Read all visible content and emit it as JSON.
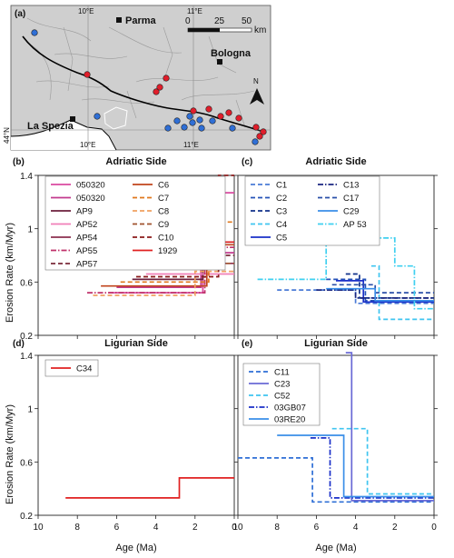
{
  "map": {
    "panel_label": "(a)",
    "labels": {
      "parma": "Parma",
      "bologna": "Bologna",
      "la_spezia": "La Spezia",
      "lon10_top": "10°E",
      "lon11_top": "11°E",
      "lon10_bottom": "10°E",
      "lon11_bottom": "11°E",
      "lat44": "44°N",
      "north": "N"
    },
    "scale": {
      "ticks": [
        "0",
        "25",
        "50"
      ],
      "unit": "km"
    },
    "colors": {
      "land": "#cfcfcf",
      "sea": "#ffffff",
      "red_site": "#e01e2b",
      "blue_site": "#2f6fd6"
    }
  },
  "shared": {
    "ylabel": "Erosion Rate (km/Myr)",
    "xlabel": "Age (Ma)",
    "y_ticks": [
      "1.4",
      "1",
      "0.6",
      "0.2"
    ],
    "x_ticks": [
      "10",
      "8",
      "6",
      "4",
      "2",
      "0"
    ]
  },
  "chart_data": [
    {
      "panel": "(b)",
      "type": "line",
      "title": "Adriatic Side",
      "xlim": [
        10,
        0
      ],
      "ylim": [
        0.2,
        1.4
      ],
      "xlabel": "",
      "ylabel": "Erosion Rate (km/Myr)",
      "legend_placement": "top",
      "series": [
        {
          "name": "050320",
          "color": "#d94aa0",
          "dash": "solid",
          "points": [
            [
              6.4,
              0.52
            ],
            [
              1.6,
              0.52
            ],
            [
              1.6,
              1.27
            ],
            [
              0,
              1.27
            ]
          ]
        },
        {
          "name": "050320",
          "color": "#c23a8e",
          "dash": "solid",
          "points": [
            [
              6.0,
              0.56
            ],
            [
              1.7,
              0.56
            ],
            [
              1.7,
              0.82
            ],
            [
              0,
              0.82
            ]
          ]
        },
        {
          "name": "AP9",
          "color": "#6b1f3c",
          "dash": "solid",
          "points": [
            [
              5.2,
              0.62
            ],
            [
              1.6,
              0.62
            ],
            [
              1.6,
              0.9
            ],
            [
              0,
              0.9
            ]
          ]
        },
        {
          "name": "AP52",
          "color": "#f07fb8",
          "dash": "solid",
          "points": [
            [
              4.5,
              0.66
            ],
            [
              2.0,
              0.66
            ],
            [
              2.0,
              0.66
            ],
            [
              0,
              0.66
            ]
          ]
        },
        {
          "name": "AP54",
          "color": "#8b2f4f",
          "dash": "solid",
          "points": [
            [
              5.2,
              0.7
            ],
            [
              1.8,
              0.7
            ],
            [
              1.8,
              0.74
            ],
            [
              0,
              0.74
            ]
          ]
        },
        {
          "name": "AP55",
          "color": "#c0306a",
          "dash": "dashdot",
          "points": [
            [
              7.5,
              0.52
            ],
            [
              1.5,
              0.52
            ],
            [
              1.5,
              0.86
            ],
            [
              0,
              0.86
            ]
          ]
        },
        {
          "name": "AP57",
          "color": "#7a2a3a",
          "dash": "dash",
          "points": [
            [
              4.0,
              0.78
            ],
            [
              1.2,
              0.78
            ],
            [
              1.2,
              0.8
            ],
            [
              0,
              0.8
            ]
          ]
        },
        {
          "name": "C6",
          "color": "#c0441c",
          "dash": "solid",
          "points": [
            [
              6.8,
              0.57
            ],
            [
              1.4,
              0.57
            ],
            [
              1.4,
              0.88
            ],
            [
              0,
              0.88
            ]
          ]
        },
        {
          "name": "C7",
          "color": "#e0781e",
          "dash": "dash",
          "points": [
            [
              5.8,
              0.6
            ],
            [
              1.3,
              0.6
            ],
            [
              1.3,
              1.05
            ],
            [
              0,
              1.05
            ]
          ]
        },
        {
          "name": "C8",
          "color": "#f0a060",
          "dash": "dash",
          "points": [
            [
              7.2,
              0.5
            ],
            [
              2.0,
              0.5
            ],
            [
              2.0,
              0.68
            ],
            [
              0,
              0.68
            ]
          ]
        },
        {
          "name": "C9",
          "color": "#a0522d",
          "dash": "dash",
          "points": [
            [
              4.5,
              0.74
            ],
            [
              2.0,
              0.74
            ],
            [
              2.0,
              0.74
            ],
            [
              0,
              0.74
            ]
          ]
        },
        {
          "name": "C10",
          "color": "#8b1a1a",
          "dash": "dash",
          "points": [
            [
              5.0,
              0.64
            ],
            [
              0.8,
              0.64
            ],
            [
              0.8,
              1.4
            ],
            [
              0,
              1.4
            ]
          ]
        },
        {
          "name": "1929",
          "color": "#e02020",
          "dash": "solid",
          "points": [
            [
              4.0,
              0.76
            ],
            [
              1.5,
              0.76
            ],
            [
              1.5,
              0.9
            ],
            [
              0,
              0.9
            ]
          ]
        }
      ],
      "legend": [
        "050320",
        "050320",
        "AP9",
        "AP52",
        "AP54",
        "AP55",
        "AP57",
        "C6",
        "C7",
        "C8",
        "C9",
        "C10",
        "1929"
      ]
    },
    {
      "panel": "(c)",
      "type": "line",
      "title": "Adriatic Side",
      "xlim": [
        10,
        0
      ],
      "ylim": [
        0.2,
        1.4
      ],
      "xlabel": "",
      "ylabel": "",
      "legend_placement": "top",
      "series": [
        {
          "name": "C1",
          "color": "#4a7bd6",
          "dash": "dash",
          "points": [
            [
              8.0,
              0.54
            ],
            [
              4.0,
              0.54
            ],
            [
              4.0,
              0.44
            ],
            [
              0,
              0.44
            ]
          ]
        },
        {
          "name": "C2",
          "color": "#2552b8",
          "dash": "dash",
          "points": [
            [
              5.5,
              0.62
            ],
            [
              3.5,
              0.62
            ],
            [
              3.5,
              0.46
            ],
            [
              0,
              0.46
            ]
          ]
        },
        {
          "name": "C3",
          "color": "#10308a",
          "dash": "dash",
          "points": [
            [
              4.5,
              0.66
            ],
            [
              3.8,
              0.66
            ],
            [
              3.8,
              0.48
            ],
            [
              0,
              0.48
            ]
          ]
        },
        {
          "name": "C4",
          "color": "#3fc5f0",
          "dash": "dash",
          "points": [
            [
              3.2,
              0.72
            ],
            [
              2.8,
              0.72
            ],
            [
              2.8,
              0.32
            ],
            [
              0,
              0.32
            ]
          ]
        },
        {
          "name": "C5",
          "color": "#1a2fc8",
          "dash": "solid",
          "points": [
            [
              5.0,
              0.61
            ],
            [
              3.6,
              0.61
            ],
            [
              3.6,
              0.45
            ],
            [
              0,
              0.45
            ]
          ]
        },
        {
          "name": "C13",
          "color": "#1a2680",
          "dash": "dashdot",
          "points": [
            [
              6.0,
              0.54
            ],
            [
              4.0,
              0.54
            ],
            [
              4.0,
              0.48
            ],
            [
              0,
              0.48
            ]
          ]
        },
        {
          "name": "C17",
          "color": "#2a4fa8",
          "dash": "dash",
          "points": [
            [
              5.2,
              0.58
            ],
            [
              3.0,
              0.58
            ],
            [
              3.0,
              0.52
            ],
            [
              0,
              0.52
            ]
          ]
        },
        {
          "name": "C29",
          "color": "#3a8ee8",
          "dash": "solid",
          "points": [
            [
              5.5,
              0.55
            ],
            [
              3.0,
              0.55
            ],
            [
              3.0,
              0.46
            ],
            [
              0,
              0.46
            ]
          ]
        },
        {
          "name": "AP 53",
          "color": "#3fd0f0",
          "dash": "dashdot",
          "points": [
            [
              9.0,
              0.62
            ],
            [
              5.5,
              0.62
            ],
            [
              5.5,
              0.93
            ],
            [
              2.0,
              0.93
            ],
            [
              2.0,
              0.72
            ],
            [
              1.0,
              0.72
            ],
            [
              1.0,
              0.4
            ],
            [
              0,
              0.4
            ]
          ]
        }
      ],
      "legend": [
        "C1",
        "C2",
        "C3",
        "C4",
        "C5",
        "C13",
        "C17",
        "C29",
        "AP 53"
      ]
    },
    {
      "panel": "(d)",
      "type": "line",
      "title": "Ligurian Side",
      "xlim": [
        10,
        0
      ],
      "ylim": [
        0.2,
        1.4
      ],
      "xlabel": "Age (Ma)",
      "ylabel": "Erosion Rate (km/Myr)",
      "legend_placement": "top-left",
      "series": [
        {
          "name": "C34",
          "color": "#e02020",
          "dash": "solid",
          "points": [
            [
              8.6,
              0.33
            ],
            [
              2.8,
              0.33
            ],
            [
              2.8,
              0.48
            ],
            [
              0,
              0.48
            ]
          ]
        }
      ],
      "legend": [
        "C34"
      ]
    },
    {
      "panel": "(e)",
      "type": "line",
      "title": "Ligurian Side",
      "xlim": [
        10,
        0
      ],
      "ylim": [
        0.2,
        1.4
      ],
      "xlabel": "Age (Ma)",
      "ylabel": "",
      "legend_placement": "top-left",
      "series": [
        {
          "name": "C11",
          "color": "#2f6fd6",
          "dash": "dash",
          "points": [
            [
              10.0,
              0.63
            ],
            [
              6.2,
              0.63
            ],
            [
              6.2,
              0.3
            ],
            [
              0,
              0.3
            ]
          ]
        },
        {
          "name": "C23",
          "color": "#6a6ad6",
          "dash": "solid",
          "points": [
            [
              4.5,
              1.42
            ],
            [
              4.2,
              1.42
            ],
            [
              4.2,
              0.31
            ],
            [
              0,
              0.31
            ]
          ]
        },
        {
          "name": "C52",
          "color": "#3fc5f0",
          "dash": "dash",
          "points": [
            [
              5.2,
              0.85
            ],
            [
              3.4,
              0.85
            ],
            [
              3.4,
              0.36
            ],
            [
              0,
              0.36
            ]
          ]
        },
        {
          "name": "03GB07",
          "color": "#1a2fc8",
          "dash": "dashdot",
          "points": [
            [
              6.3,
              0.78
            ],
            [
              5.3,
              0.78
            ],
            [
              5.3,
              0.33
            ],
            [
              0,
              0.33
            ]
          ]
        },
        {
          "name": "03RE20",
          "color": "#3a8ee8",
          "dash": "solid",
          "points": [
            [
              8.0,
              0.8
            ],
            [
              4.6,
              0.8
            ],
            [
              4.6,
              0.34
            ],
            [
              0,
              0.34
            ]
          ]
        }
      ],
      "legend": [
        "C11",
        "C23",
        "C52",
        "03GB07",
        "03RE20"
      ]
    }
  ]
}
